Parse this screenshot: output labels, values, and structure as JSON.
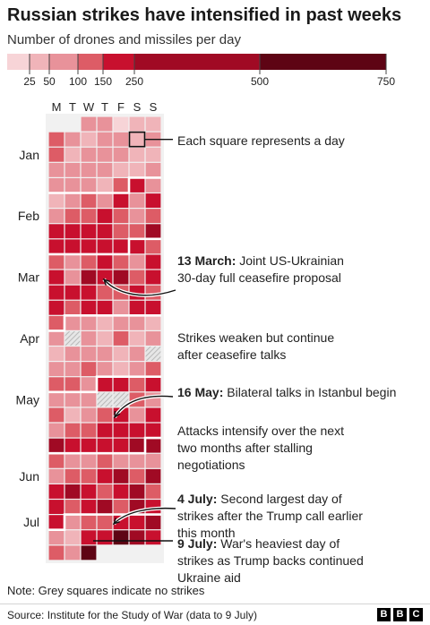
{
  "chart_data": {
    "type": "heatmap",
    "title": "Russian strikes have intensified in past weeks",
    "subtitle": "Number of drones and missiles per day",
    "legend": {
      "ticks": [
        25,
        50,
        100,
        150,
        250,
        500,
        750
      ],
      "bins": [
        {
          "max": 25,
          "color": "#f7d4d7"
        },
        {
          "max": 50,
          "color": "#f0b4b9"
        },
        {
          "max": 100,
          "color": "#e8929a"
        },
        {
          "max": 150,
          "color": "#dd5c66"
        },
        {
          "max": 250,
          "color": "#c8102e"
        },
        {
          "max": 500,
          "color": "#a00a24"
        },
        {
          "max": 750,
          "color": "#5e0414"
        }
      ],
      "no_strike_color": "#d9d9d9"
    },
    "weekday_labels": [
      "M",
      "T",
      "W",
      "T",
      "F",
      "S",
      "S"
    ],
    "month_labels": [
      {
        "label": "Jan",
        "week": 2
      },
      {
        "label": "Feb",
        "week": 6
      },
      {
        "label": "Mar",
        "week": 10
      },
      {
        "label": "Apr",
        "week": 14
      },
      {
        "label": "May",
        "week": 18
      },
      {
        "label": "Jun",
        "week": 23
      },
      {
        "label": "Jul",
        "week": 26
      }
    ],
    "start_weekday": 2,
    "daily_values": [
      80,
      60,
      15,
      30,
      40,
      110,
      70,
      35,
      60,
      90,
      45,
      70,
      120,
      40,
      55,
      90,
      70,
      30,
      50,
      80,
      60,
      90,
      70,
      40,
      50,
      60,
      70,
      100,
      60,
      40,
      120,
      230,
      80,
      50,
      60,
      110,
      90,
      180,
      70,
      160,
      90,
      130,
      150,
      200,
      130,
      90,
      140,
      180,
      230,
      210,
      190,
      120,
      140,
      260,
      220,
      190,
      200,
      230,
      170,
      200,
      150,
      110,
      70,
      150,
      230,
      130,
      100,
      170,
      160,
      90,
      300,
      210,
      280,
      120,
      230,
      190,
      180,
      160,
      120,
      110,
      200,
      150,
      240,
      140,
      180,
      200,
      90,
      210,
      180,
      110,
      70,
      80,
      50,
      60,
      100,
      30,
      80,
      0,
      60,
      40,
      120,
      30,
      70,
      50,
      90,
      60,
      80,
      40,
      100,
      0,
      70,
      60,
      110,
      90,
      30,
      80,
      120,
      140,
      120,
      100,
      200,
      170,
      140,
      180,
      90,
      60,
      80,
      0,
      0,
      120,
      90,
      130,
      40,
      90,
      120,
      180,
      60,
      220,
      80,
      150,
      120,
      210,
      250,
      190,
      170,
      270,
      200,
      160,
      190,
      230,
      280,
      320,
      150,
      70,
      90,
      110,
      80,
      60,
      100,
      90,
      150,
      120,
      210,
      330,
      140,
      260,
      220,
      280,
      230,
      150,
      180,
      300,
      110,
      170,
      140,
      210,
      260,
      110,
      480,
      190,
      200,
      90,
      150,
      110,
      240,
      170,
      310,
      100,
      40,
      220,
      180,
      550,
      280,
      230,
      120,
      60,
      620
    ],
    "annotations": [
      {
        "bold": "",
        "text": "Each square represents a day"
      },
      {
        "bold": "13 March:",
        "text": "Joint US-Ukrainian 30-day full ceasefire proposal"
      },
      {
        "bold": "",
        "text": "Strikes weaken but continue after ceasefire talks"
      },
      {
        "bold": "16 May:",
        "text": "Bilateral talks in Istanbul begin"
      },
      {
        "bold": "",
        "text": "Attacks intensify over the next two months after stalling negotiations"
      },
      {
        "bold": "4 July:",
        "text": "Second largest day of strikes after the Trump call earlier this month"
      },
      {
        "bold": "9 July:",
        "text": "War's heaviest day of strikes as Trump backs continued Ukraine aid"
      }
    ]
  },
  "footer": {
    "note": "Note: Grey squares indicate no strikes",
    "source": "Source: Institute for the Study of War (data to 9 July)",
    "logo": [
      "B",
      "B",
      "C"
    ]
  }
}
